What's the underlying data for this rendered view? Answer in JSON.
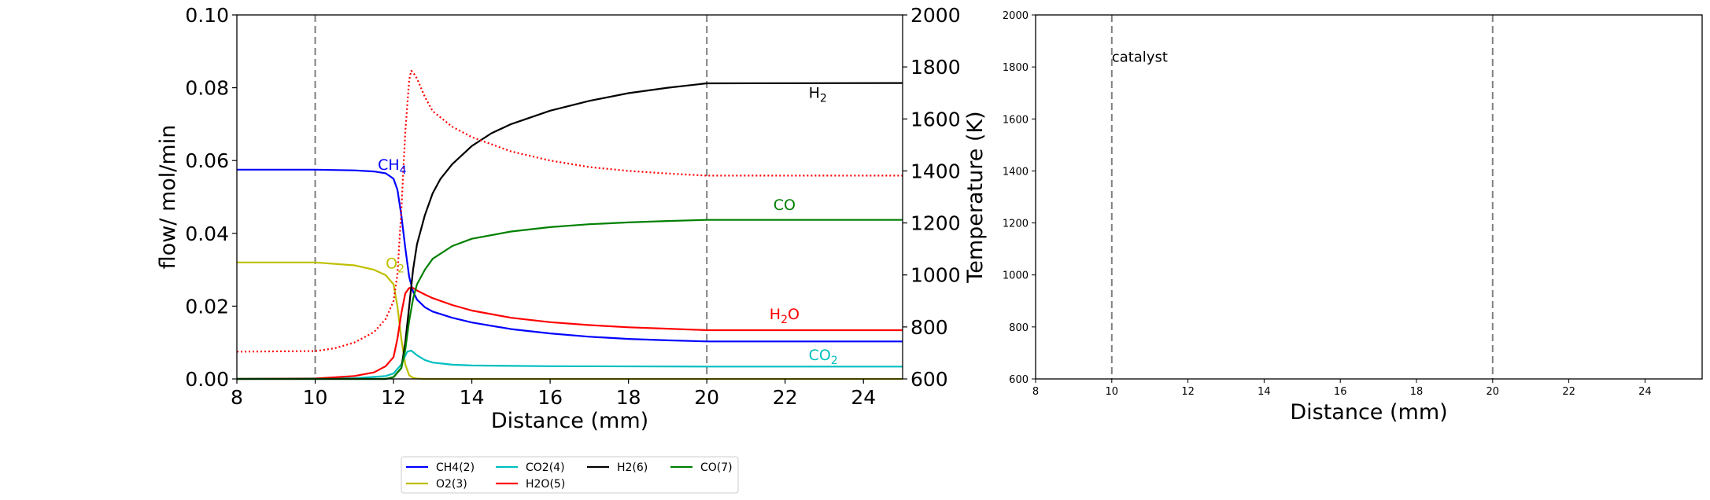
{
  "chart_data": [
    {
      "type": "line",
      "xlabel": "Distance (mm)",
      "ylabel": "flow/ mol/min",
      "y2label": "Temperature (K)",
      "xlim": [
        8,
        25
      ],
      "ylim": [
        0,
        0.1
      ],
      "y2lim": [
        600,
        2000
      ],
      "xticks": [
        "8",
        "10",
        "12",
        "14",
        "16",
        "18",
        "20",
        "22",
        "24"
      ],
      "yticks": [
        "0.00",
        "0.02",
        "0.04",
        "0.06",
        "0.08",
        "0.10"
      ],
      "y2ticks": [
        "600",
        "800",
        "1000",
        "1200",
        "1400",
        "1600",
        "1800",
        "2000"
      ],
      "vlines": [
        10,
        20
      ],
      "grid": false,
      "series": [
        {
          "name": "CH4(2)",
          "color": "#0000ff",
          "style": "solid",
          "axis": "left",
          "x": [
            8,
            10,
            11,
            11.5,
            11.8,
            12.0,
            12.1,
            12.2,
            12.3,
            12.4,
            12.5,
            12.6,
            12.8,
            13,
            13.5,
            14,
            15,
            16,
            17,
            18,
            19,
            20,
            25
          ],
          "y": [
            0.0575,
            0.0575,
            0.0573,
            0.057,
            0.0565,
            0.055,
            0.052,
            0.045,
            0.036,
            0.028,
            0.024,
            0.0218,
            0.0197,
            0.0185,
            0.0168,
            0.0155,
            0.0137,
            0.0125,
            0.0116,
            0.011,
            0.0106,
            0.0103,
            0.0103
          ]
        },
        {
          "name": "O2(3)",
          "color": "#bfbf00",
          "style": "solid",
          "axis": "left",
          "x": [
            8,
            10,
            11,
            11.5,
            11.8,
            12.0,
            12.1,
            12.2,
            12.3,
            12.4,
            12.5,
            12.6,
            12.8,
            25
          ],
          "y": [
            0.032,
            0.032,
            0.0312,
            0.03,
            0.0285,
            0.026,
            0.02,
            0.011,
            0.004,
            0.001,
            0.0003,
            0.0001,
            0,
            0
          ]
        },
        {
          "name": "CO2(4)",
          "color": "#00bfbf",
          "style": "solid",
          "axis": "left",
          "x": [
            8,
            11,
            11.8,
            12.0,
            12.2,
            12.35,
            12.45,
            12.6,
            12.8,
            13,
            13.5,
            14,
            16,
            20,
            25
          ],
          "y": [
            0,
            0.0002,
            0.0008,
            0.0015,
            0.004,
            0.0075,
            0.0078,
            0.0065,
            0.0052,
            0.0045,
            0.0039,
            0.0037,
            0.0035,
            0.0034,
            0.0034
          ]
        },
        {
          "name": "H2O(5)",
          "color": "#ff0000",
          "style": "solid",
          "axis": "left",
          "x": [
            8,
            10,
            11,
            11.5,
            11.8,
            12.0,
            12.1,
            12.2,
            12.3,
            12.4,
            12.5,
            12.6,
            12.8,
            13,
            13.5,
            14,
            15,
            16,
            17,
            18,
            19,
            20,
            25
          ],
          "y": [
            0,
            0.0001,
            0.0008,
            0.0018,
            0.0035,
            0.006,
            0.011,
            0.018,
            0.0235,
            0.025,
            0.025,
            0.0243,
            0.0232,
            0.0222,
            0.0203,
            0.0188,
            0.0168,
            0.0156,
            0.0148,
            0.0142,
            0.0138,
            0.0134,
            0.0134
          ]
        },
        {
          "name": "H2(6)",
          "color": "#000000",
          "style": "solid",
          "axis": "left",
          "x": [
            8,
            11.8,
            12.0,
            12.2,
            12.3,
            12.4,
            12.5,
            12.6,
            12.8,
            13,
            13.2,
            13.5,
            14,
            14.5,
            15,
            16,
            17,
            18,
            19,
            20,
            25
          ],
          "y": [
            0,
            0,
            0.0005,
            0.003,
            0.01,
            0.02,
            0.03,
            0.037,
            0.045,
            0.051,
            0.055,
            0.059,
            0.064,
            0.0675,
            0.07,
            0.0737,
            0.0764,
            0.0785,
            0.08,
            0.0812,
            0.0813
          ]
        },
        {
          "name": "CO(7)",
          "color": "#008000",
          "style": "solid",
          "axis": "left",
          "x": [
            8,
            11.8,
            12.0,
            12.2,
            12.3,
            12.4,
            12.5,
            12.6,
            12.8,
            13,
            13.5,
            14,
            15,
            16,
            17,
            18,
            19,
            20,
            25
          ],
          "y": [
            0,
            0,
            0.0005,
            0.003,
            0.008,
            0.016,
            0.022,
            0.026,
            0.03,
            0.033,
            0.0365,
            0.0385,
            0.0405,
            0.0417,
            0.0425,
            0.043,
            0.0434,
            0.0437,
            0.0437
          ]
        },
        {
          "name": "",
          "color": "#ff0000",
          "style": "dotted",
          "axis": "right",
          "x": [
            8,
            10,
            10.5,
            11,
            11.5,
            11.8,
            12.0,
            12.1,
            12.2,
            12.3,
            12.4,
            12.45,
            12.5,
            12.6,
            12.8,
            13,
            13.5,
            14,
            15,
            16,
            17,
            18,
            19,
            20,
            25
          ],
          "y": [
            705,
            707,
            718,
            740,
            780,
            830,
            900,
            1000,
            1250,
            1550,
            1750,
            1785,
            1780,
            1755,
            1685,
            1630,
            1570,
            1530,
            1475,
            1440,
            1415,
            1400,
            1390,
            1382,
            1382
          ]
        }
      ],
      "labels": [
        {
          "text": "CH",
          "sub": "4",
          "color": "#0000ff",
          "x": 11.6,
          "y": 0.0575
        },
        {
          "text": "O",
          "sub": "2",
          "color": "#bfbf00",
          "x": 11.8,
          "y": 0.0303
        },
        {
          "text": "CO",
          "sub": "2",
          "color": "#00bfbf",
          "x": 22.6,
          "y": 0.0052
        },
        {
          "text": "H",
          "sub": "2",
          "mid": "O",
          "color": "#ff0000",
          "x": 21.6,
          "y": 0.0164
        },
        {
          "text": "H",
          "sub": "2",
          "color": "#000000",
          "x": 22.6,
          "y": 0.0772
        },
        {
          "text": "CO",
          "sub": "",
          "color": "#008000",
          "x": 21.7,
          "y": 0.0464
        }
      ],
      "legend": {
        "position": "bottom-center",
        "entries": [
          {
            "label": "CH4(2)",
            "color": "#0000ff"
          },
          {
            "label": "CO2(4)",
            "color": "#00bfbf"
          },
          {
            "label": "H2(6)",
            "color": "#000000"
          },
          {
            "label": "CO(7)",
            "color": "#008000"
          },
          {
            "label": "O2(3)",
            "color": "#bfbf00"
          },
          {
            "label": "H2O(5)",
            "color": "#ff0000"
          }
        ]
      }
    },
    {
      "type": "line",
      "xlabel": "Distance (mm)",
      "ylabel": "",
      "xlim": [
        8,
        25.5
      ],
      "ylim": [
        600,
        2000
      ],
      "xticks": [
        "8",
        "10",
        "12",
        "14",
        "16",
        "18",
        "20",
        "22",
        "24"
      ],
      "yticks": [
        "600",
        "800",
        "1000",
        "1200",
        "1400",
        "1600",
        "1800",
        "2000"
      ],
      "vlines": [
        10,
        20
      ],
      "grid": false,
      "annotations": [
        {
          "text": "catalyst",
          "x": 10,
          "y": 1820
        }
      ],
      "series": []
    }
  ]
}
